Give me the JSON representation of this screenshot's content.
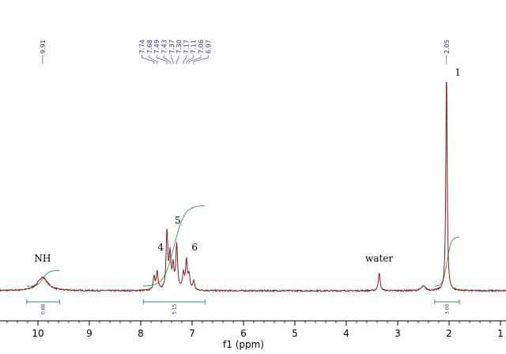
{
  "chart_data": {
    "type": "line",
    "xlabel": "f1 (ppm)",
    "xlim": [
      11,
      1
    ],
    "x_reversed": true,
    "ylim": [
      0,
      1
    ],
    "grid": false,
    "x_ticks": [
      10,
      9,
      8,
      7,
      6,
      5,
      4,
      3,
      2,
      1
    ],
    "x_tick_labels": [
      "10",
      "9",
      "8",
      "7",
      "6",
      "5",
      "4",
      "3",
      "2",
      "1"
    ],
    "colors": {
      "spectrum": "#8b1a1a",
      "integral_curve": "#2e9b50",
      "integral_bar": "#2e9b50",
      "peak_label": "#2c2f8a"
    },
    "peaks": [
      {
        "ppm": 9.91,
        "height": 0.06,
        "width": 0.12
      },
      {
        "ppm": 7.74,
        "height": 0.06,
        "width": 0.02
      },
      {
        "ppm": 7.68,
        "height": 0.08,
        "width": 0.02
      },
      {
        "ppm": 7.49,
        "height": 0.26,
        "width": 0.02
      },
      {
        "ppm": 7.43,
        "height": 0.15,
        "width": 0.02
      },
      {
        "ppm": 7.37,
        "height": 0.1,
        "width": 0.02
      },
      {
        "ppm": 7.3,
        "height": 0.2,
        "width": 0.02
      },
      {
        "ppm": 7.17,
        "height": 0.07,
        "width": 0.02
      },
      {
        "ppm": 7.11,
        "height": 0.13,
        "width": 0.02
      },
      {
        "ppm": 7.06,
        "height": 0.06,
        "width": 0.02
      },
      {
        "ppm": 6.97,
        "height": 0.04,
        "width": 0.02
      },
      {
        "ppm": 3.36,
        "height": 0.08,
        "width": 0.02
      },
      {
        "ppm": 2.5,
        "height": 0.02,
        "width": 0.05
      },
      {
        "ppm": 2.05,
        "height": 0.99,
        "width": 0.015
      }
    ],
    "peak_labels": [
      {
        "ppm": 9.91,
        "text": "9.91",
        "group": "a"
      },
      {
        "ppm": 7.74,
        "text": "7.74",
        "group": "b"
      },
      {
        "ppm": 7.68,
        "text": "7.68",
        "group": "b"
      },
      {
        "ppm": 7.49,
        "text": "7.49",
        "group": "b"
      },
      {
        "ppm": 7.43,
        "text": "7.43",
        "group": "b"
      },
      {
        "ppm": 7.37,
        "text": "7.37",
        "group": "b"
      },
      {
        "ppm": 7.3,
        "text": "7.30",
        "group": "b"
      },
      {
        "ppm": 7.17,
        "text": "7.17",
        "group": "b"
      },
      {
        "ppm": 7.11,
        "text": "7.11",
        "group": "b"
      },
      {
        "ppm": 7.06,
        "text": "7.06",
        "group": "b"
      },
      {
        "ppm": 6.97,
        "text": "6.97",
        "group": "b"
      },
      {
        "ppm": 2.05,
        "text": "2.05",
        "group": "c"
      }
    ],
    "annotations": [
      {
        "text": "NH",
        "ppm": 9.91,
        "level": 0.13
      },
      {
        "text": "4",
        "ppm": 7.61,
        "level": 0.18
      },
      {
        "text": "5",
        "ppm": 7.28,
        "level": 0.3
      },
      {
        "text": "6",
        "ppm": 6.95,
        "level": 0.18
      },
      {
        "text": "water",
        "ppm": 3.36,
        "level": 0.13
      },
      {
        "text": "1",
        "ppm": 1.83,
        "level": 0.96
      }
    ],
    "integrals": [
      {
        "from": 10.22,
        "to": 9.58,
        "value": "0.88",
        "rise": 0.07
      },
      {
        "from": 7.95,
        "to": 6.75,
        "value": "5.15",
        "rise": 0.36
      },
      {
        "from": 2.28,
        "to": 1.8,
        "value": "3.00",
        "rise": 0.22
      }
    ]
  }
}
